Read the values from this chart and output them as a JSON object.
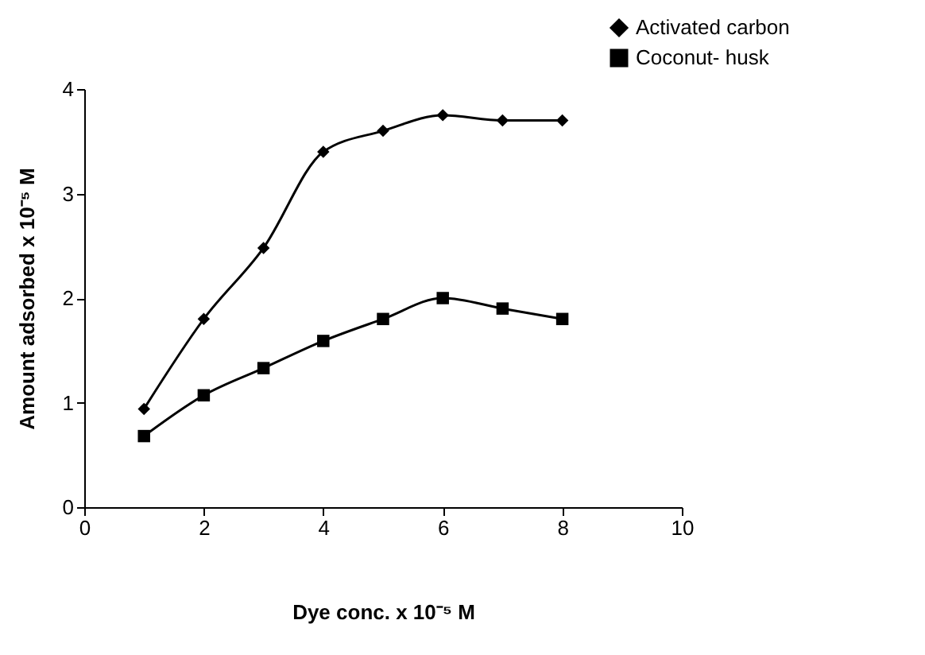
{
  "chart_data": {
    "type": "line",
    "xlabel": "Dye conc. x 10⁻⁵ M",
    "ylabel": "Amount adsorbed x 10⁻⁵ M",
    "x": [
      1,
      2,
      3,
      4,
      5,
      6,
      7,
      8
    ],
    "series": [
      {
        "name": "Activated carbon",
        "color": "#000000",
        "marker": "diamond",
        "values": [
          0.94,
          1.8,
          2.48,
          3.4,
          3.6,
          3.75,
          3.7,
          3.7
        ]
      },
      {
        "name": "Coconut- husk",
        "color": "#000000",
        "marker": "square",
        "values": [
          0.68,
          1.07,
          1.33,
          1.59,
          1.8,
          2.0,
          1.9,
          1.8
        ]
      }
    ],
    "xlim": [
      0,
      10
    ],
    "xticks": [
      0,
      2,
      4,
      6,
      8,
      10
    ],
    "ylim": [
      0,
      4
    ],
    "yticks": [
      0,
      1,
      2,
      3,
      4
    ],
    "grid": false,
    "legend": "top right",
    "line_style": "solid"
  }
}
